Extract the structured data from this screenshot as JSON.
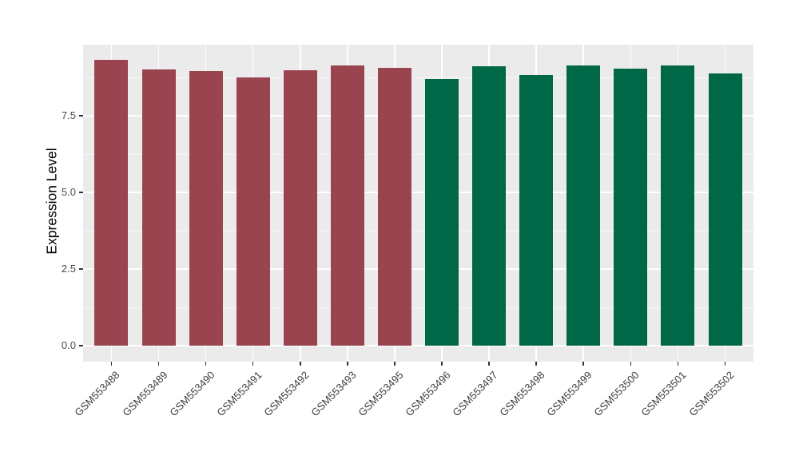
{
  "figure": {
    "background": "#FFFFFF",
    "panel_background": "#EBEBEB",
    "gridline_color": "#FFFFFF",
    "tick_mark_color": "#333333",
    "tick_label_color": "#4A4A4A",
    "axis_title_color": "#000000",
    "group_colors": {
      "left_group_red": "#9A4450",
      "right_group_green": "#006847"
    }
  },
  "chart_data": {
    "type": "bar",
    "title": "",
    "xlabel": "",
    "ylabel": "Expression Level",
    "categories": [
      "GSM553488",
      "GSM553489",
      "GSM553490",
      "GSM553491",
      "GSM553492",
      "GSM553493",
      "GSM553495",
      "GSM553496",
      "GSM553497",
      "GSM553498",
      "GSM553499",
      "GSM553500",
      "GSM553501",
      "GSM553502"
    ],
    "values": [
      9.32,
      9.02,
      8.96,
      8.76,
      8.99,
      9.13,
      9.06,
      8.71,
      9.12,
      8.84,
      9.13,
      9.04,
      9.13,
      8.87
    ],
    "bar_colors": [
      "#9A4450",
      "#9A4450",
      "#9A4450",
      "#9A4450",
      "#9A4450",
      "#9A4450",
      "#9A4450",
      "#006847",
      "#006847",
      "#006847",
      "#006847",
      "#006847",
      "#006847",
      "#006847"
    ],
    "ylim": [
      0,
      9.8
    ],
    "yticks": [
      0,
      2.5,
      5.0,
      7.5
    ],
    "ytick_labels": [
      "0.0",
      "2.5",
      "5.0",
      "7.5"
    ],
    "yticks_minor": [
      1.25,
      3.75,
      6.25,
      8.75
    ],
    "x_label_rotation_deg": 45,
    "grid": true,
    "legend_position": "none"
  }
}
